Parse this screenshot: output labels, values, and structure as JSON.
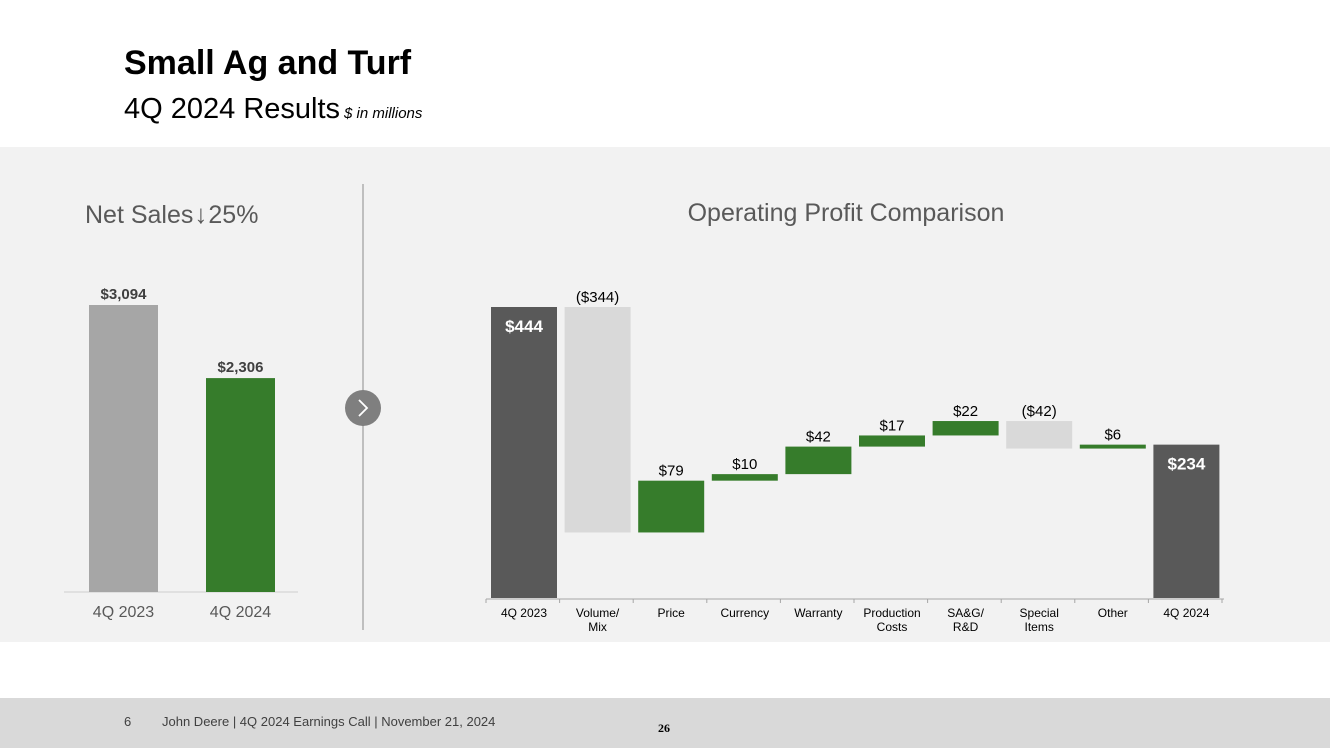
{
  "header": {
    "title": "Small Ag and Turf",
    "subtitle": "4Q 2024 Results",
    "unit_note": "$ in millions"
  },
  "net_sales": {
    "heading": "Net Sales",
    "arrow_icon": "down-arrow-icon",
    "arrow_glyph": "↓",
    "change": "25%"
  },
  "operating_profit": {
    "heading": "Operating Profit Comparison"
  },
  "navigation": {
    "next_icon": "chevron-right-icon"
  },
  "colors": {
    "green": "#367c2b",
    "dark_gray": "#595959",
    "mid_gray": "#a6a6a6",
    "light_gray": "#d9d9d9",
    "panel": "#f2f2f2"
  },
  "chart_data": [
    {
      "type": "bar",
      "title": "Net Sales",
      "categories": [
        "4Q 2023",
        "4Q 2024"
      ],
      "values": [
        3094,
        2306
      ],
      "labels": [
        "$3,094",
        "$2,306"
      ],
      "colors": [
        "#a6a6a6",
        "#367c2b"
      ],
      "ylim": [
        0,
        3400
      ]
    },
    {
      "type": "bar",
      "subtype": "waterfall",
      "title": "Operating Profit Comparison",
      "categories": [
        [
          "4Q 2023"
        ],
        [
          "Volume/",
          "Mix"
        ],
        [
          "Price"
        ],
        [
          "Currency"
        ],
        [
          "Warranty"
        ],
        [
          "Production",
          "Costs"
        ],
        [
          "SA&G/",
          "R&D"
        ],
        [
          "Special",
          "Items"
        ],
        [
          "Other"
        ],
        [
          "4Q 2024"
        ]
      ],
      "steps": [
        {
          "kind": "total",
          "value": 444,
          "label": "$444"
        },
        {
          "kind": "delta",
          "value": -344,
          "label": "($344)"
        },
        {
          "kind": "delta",
          "value": 79,
          "label": "$79"
        },
        {
          "kind": "delta",
          "value": 10,
          "label": "$10"
        },
        {
          "kind": "delta",
          "value": 42,
          "label": "$42"
        },
        {
          "kind": "delta",
          "value": 17,
          "label": "$17"
        },
        {
          "kind": "delta",
          "value": 22,
          "label": "$22"
        },
        {
          "kind": "delta",
          "value": -42,
          "label": "($42)"
        },
        {
          "kind": "delta",
          "value": 6,
          "label": "$6"
        },
        {
          "kind": "total",
          "value": 234,
          "label": "$234"
        }
      ],
      "ylim": [
        0,
        444
      ]
    }
  ],
  "footer": {
    "page": "6",
    "text": "John Deere | 4Q 2024 Earnings Call | November 21, 2024",
    "number": "26"
  }
}
